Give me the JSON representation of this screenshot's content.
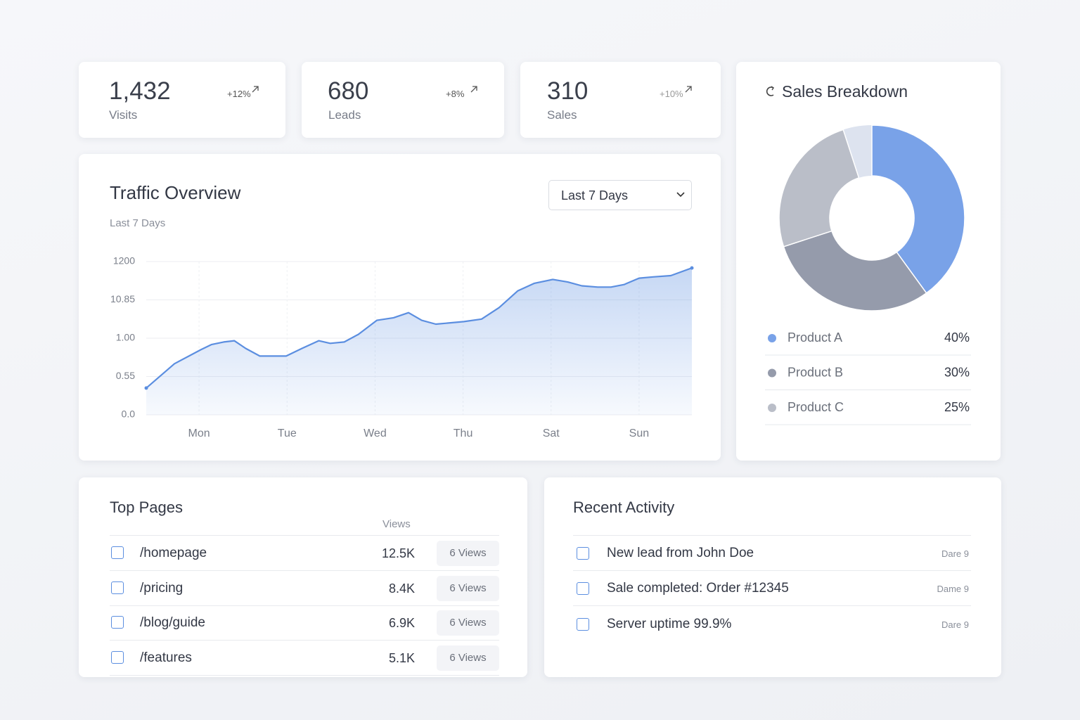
{
  "stats": [
    {
      "value": "1,432",
      "change": "+12%",
      "label": "Visits"
    },
    {
      "value": "680",
      "change": "+8%",
      "label": "Leads"
    },
    {
      "value": "310",
      "change": "+10%",
      "label": "Sales"
    }
  ],
  "traffic": {
    "title": "Traffic Overview",
    "subtitle": "Last 7 Days",
    "range_select": "Last 7 Days"
  },
  "sales": {
    "title": "Sales Breakdown"
  },
  "chart_data": [
    {
      "type": "line",
      "x": [
        -0.6,
        -0.28,
        0.02,
        0.14,
        0.28,
        0.4,
        0.53,
        0.69,
        0.81,
        0.99,
        1.17,
        1.36,
        1.49,
        1.65,
        1.81,
        2.02,
        2.21,
        2.38,
        2.53,
        2.69,
        3.01,
        3.21,
        3.41,
        3.62,
        3.81,
        4.02,
        4.19,
        4.35,
        4.53,
        4.68,
        4.83,
        5.0,
        5.16,
        5.36,
        5.6
      ],
      "values": [
        210,
        400,
        510,
        550,
        570,
        580,
        520,
        460,
        460,
        460,
        520,
        580,
        560,
        570,
        630,
        740,
        760,
        800,
        740,
        710,
        730,
        750,
        840,
        970,
        1030,
        1060,
        1040,
        1010,
        1000,
        1000,
        1020,
        1070,
        1080,
        1090,
        1150
      ],
      "color": "#5b8ee0",
      "xlim": [
        -0.6,
        5.6
      ],
      "xticks": [
        {
          "value": 0,
          "label": "Mon"
        },
        {
          "value": 1,
          "label": "Tue"
        },
        {
          "value": 2,
          "label": "Wed"
        },
        {
          "value": 3,
          "label": "Thu"
        },
        {
          "value": 4,
          "label": "Sat"
        },
        {
          "value": 5,
          "label": "Sun"
        }
      ],
      "ylim": [
        0,
        1200
      ],
      "yticks": [
        {
          "value": 0,
          "label": "0.0"
        },
        {
          "value": 300,
          "label": "0.55"
        },
        {
          "value": 600,
          "label": "1.00"
        },
        {
          "value": 900,
          "label": "10.85"
        },
        1200
      ],
      "grid": true
    },
    {
      "type": "donut",
      "categories": [
        "Product A",
        "Product B",
        "Product C"
      ],
      "values": [
        40,
        30,
        25
      ],
      "value_labels": [
        "40%",
        "30%",
        "25%"
      ],
      "colors": [
        "#79a2e8",
        "#959bab",
        "#babec8"
      ]
    }
  ],
  "top_pages": {
    "title": "Top Pages",
    "column": "Views",
    "rows": [
      {
        "page": "/homepage",
        "views": "12.5K",
        "badge": "6 Views"
      },
      {
        "page": "/pricing",
        "views": "8.4K",
        "badge": "6 Views"
      },
      {
        "page": "/blog/guide",
        "views": "6.9K",
        "badge": "6 Views"
      },
      {
        "page": "/features",
        "views": "5.1K",
        "badge": "6 Views"
      }
    ]
  },
  "recent_activity": {
    "title": "Recent Activity",
    "rows": [
      {
        "text": "New lead from John Doe",
        "time": "Dare 9"
      },
      {
        "text": "Sale completed: Order #12345",
        "time": "Dame 9"
      },
      {
        "text": "Server uptime 99.9%",
        "time": "Dare 9"
      }
    ]
  }
}
